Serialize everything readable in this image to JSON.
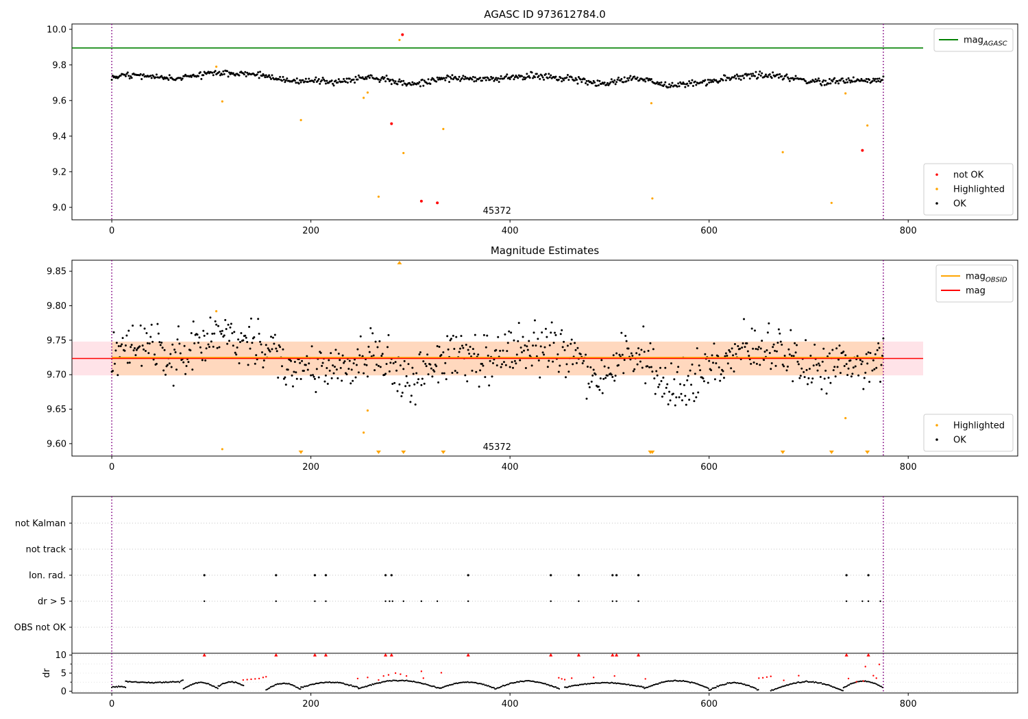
{
  "chart_data": [
    {
      "type": "scatter",
      "title": "AGASC ID 973612784.0",
      "xlim": [
        -40,
        910
      ],
      "ylim": [
        8.93,
        10.03
      ],
      "xticks": [
        "0",
        "200",
        "400",
        "600",
        "800"
      ],
      "xtick_values": [
        0,
        200,
        400,
        600,
        800
      ],
      "yticks": [
        "9.0",
        "9.2",
        "9.4",
        "9.6",
        "9.8",
        "10.0"
      ],
      "ytick_values": [
        9.0,
        9.2,
        9.4,
        9.6,
        9.8,
        10.0
      ],
      "obsid_label": "45372",
      "obsid_label_x": 387,
      "obs_bounds": [
        0,
        775
      ],
      "series": [
        {
          "name": "mag_AGASC",
          "kind": "hline",
          "y": 9.895,
          "x": [
            -40,
            815
          ],
          "color": "#008000"
        },
        {
          "name": "not OK",
          "color": "#ff0000",
          "x": [
            292,
            281,
            311,
            327,
            754
          ],
          "y": [
            9.97,
            9.47,
            9.035,
            9.025,
            9.32
          ]
        },
        {
          "name": "Highlighted",
          "color": "#ffa500",
          "x": [
            105,
            111,
            190,
            253,
            257,
            268,
            289,
            293,
            333,
            542,
            543,
            674,
            723,
            737,
            759
          ],
          "y": [
            9.79,
            9.595,
            9.49,
            9.615,
            9.645,
            9.06,
            9.94,
            9.305,
            9.44,
            9.585,
            9.05,
            9.31,
            9.025,
            9.64,
            9.46
          ]
        },
        {
          "name": "OK",
          "color": "#000000",
          "trend": {
            "x": [
              0,
              30,
              60,
              100,
              140,
              180,
              220,
              260,
              300,
              340,
              380,
              420,
              460,
              490,
              530,
              560,
              600,
              640,
              680,
              700,
              740,
              775
            ],
            "y": [
              9.735,
              9.742,
              9.72,
              9.755,
              9.748,
              9.712,
              9.705,
              9.735,
              9.69,
              9.73,
              9.72,
              9.738,
              9.725,
              9.692,
              9.73,
              9.68,
              9.708,
              9.742,
              9.735,
              9.705,
              9.71,
              9.72
            ]
          }
        }
      ],
      "legends": [
        {
          "position": "top-right",
          "entries": [
            {
              "label": "mag",
              "sub": "AGASC",
              "color": "#008000",
              "marker": "line"
            }
          ]
        },
        {
          "position": "bottom-right",
          "entries": [
            {
              "label": "not OK",
              "color": "#ff0000",
              "marker": "dot"
            },
            {
              "label": "Highlighted",
              "color": "#ffa500",
              "marker": "dot"
            },
            {
              "label": "OK",
              "color": "#000000",
              "marker": "dot"
            }
          ]
        }
      ]
    },
    {
      "type": "scatter",
      "title": "Magnitude Estimates",
      "xlim": [
        -40,
        910
      ],
      "ylim": [
        9.582,
        9.866
      ],
      "xticks": [
        "0",
        "200",
        "400",
        "600",
        "800"
      ],
      "xtick_values": [
        0,
        200,
        400,
        600,
        800
      ],
      "yticks": [
        "9.60",
        "9.65",
        "9.70",
        "9.75",
        "9.80",
        "9.85"
      ],
      "ytick_values": [
        9.6,
        9.65,
        9.7,
        9.75,
        9.8,
        9.85
      ],
      "obsid_label": "45372",
      "obsid_label_x": 387,
      "obs_bounds": [
        0,
        775
      ],
      "bands": [
        {
          "x": [
            -40,
            815
          ],
          "y": [
            9.699,
            9.748
          ],
          "color": "#ffc0cb",
          "opacity": 0.45
        },
        {
          "x": [
            0,
            775
          ],
          "y": [
            9.699,
            9.748
          ],
          "color": "#ffa500",
          "opacity": 0.18
        }
      ],
      "series": [
        {
          "name": "mag_OBSID",
          "kind": "hline",
          "y": 9.7245,
          "x": [
            0,
            775
          ],
          "color": "#ffa500",
          "width": 2.5
        },
        {
          "name": "mag",
          "kind": "hline",
          "y": 9.7235,
          "x": [
            -40,
            815
          ],
          "color": "#ff0000",
          "width": 1.6
        },
        {
          "name": "Highlighted",
          "color": "#ffa500",
          "x": [
            105,
            111,
            253,
            257,
            737
          ],
          "y": [
            9.792,
            9.592,
            9.616,
            9.648,
            9.637
          ],
          "offscale_high": [
            289
          ],
          "offscale_low": [
            190,
            268,
            293,
            333,
            541,
            543,
            674,
            723,
            759
          ]
        },
        {
          "name": "OK",
          "color": "#000000",
          "trend": {
            "x": [
              0,
              30,
              60,
              100,
              140,
              180,
              220,
              260,
              300,
              340,
              380,
              420,
              460,
              490,
              530,
              560,
              600,
              640,
              680,
              700,
              740,
              775
            ],
            "y": [
              9.735,
              9.742,
              9.72,
              9.755,
              9.748,
              9.712,
              9.705,
              9.735,
              9.69,
              9.73,
              9.72,
              9.738,
              9.725,
              9.692,
              9.73,
              9.68,
              9.708,
              9.742,
              9.735,
              9.705,
              9.71,
              9.72
            ]
          }
        }
      ],
      "legends": [
        {
          "position": "top-right",
          "entries": [
            {
              "label": "mag",
              "sub": "OBSID",
              "color": "#ffa500",
              "marker": "line"
            },
            {
              "label": "mag",
              "color": "#ff0000",
              "marker": "line"
            }
          ]
        },
        {
          "position": "bottom-right",
          "entries": [
            {
              "label": "Highlighted",
              "color": "#ffa500",
              "marker": "dot"
            },
            {
              "label": "OK",
              "color": "#000000",
              "marker": "dot"
            }
          ]
        }
      ]
    },
    {
      "type": "scatter",
      "title": "",
      "xlim": [
        -40,
        910
      ],
      "categories": [
        "not Kalman",
        "not track",
        "Ion. rad.",
        "dr > 5",
        "OBS not OK"
      ],
      "obs_bounds": [
        0,
        775
      ],
      "series": [
        {
          "name": "Ion. rad.",
          "category": "Ion. rad.",
          "color": "#000000",
          "x": [
            93,
            165,
            204,
            215,
            275,
            281,
            358,
            441,
            469,
            503,
            507,
            529,
            738,
            760
          ]
        },
        {
          "name": "dr > 5",
          "category": "dr > 5",
          "color": "#000000",
          "x": [
            93,
            165,
            204,
            215,
            275,
            279,
            282,
            293,
            311,
            327,
            358,
            441,
            469,
            503,
            507,
            529,
            738,
            754,
            760,
            772
          ]
        }
      ]
    },
    {
      "type": "scatter",
      "title": "",
      "ylabel": "dr",
      "xlim": [
        -40,
        910
      ],
      "ylim": [
        -0.5,
        10.5
      ],
      "xticks": [
        "0",
        "200",
        "400",
        "600",
        "800"
      ],
      "xtick_values": [
        0,
        200,
        400,
        600,
        800
      ],
      "yticks": [
        "0",
        "5",
        "10"
      ],
      "ytick_values": [
        0,
        5,
        10
      ],
      "obs_bounds": [
        0,
        775
      ],
      "series": [
        {
          "name": "dr >= 10",
          "color": "#ff0000",
          "marker": "triangle",
          "y": 10,
          "x": [
            93,
            165,
            204,
            215,
            275,
            281,
            358,
            441,
            469,
            503,
            507,
            529,
            738,
            760
          ]
        },
        {
          "name": "red",
          "color": "#ff0000",
          "x": [
            132,
            136,
            140,
            144,
            148,
            152,
            155,
            247,
            257,
            268,
            273,
            278,
            285,
            290,
            296,
            311,
            313,
            331,
            449,
            452,
            455,
            462,
            484,
            505,
            536,
            650,
            654,
            658,
            662,
            675,
            690,
            740,
            748,
            755,
            757,
            765,
            768,
            771
          ],
          "y": [
            3.1,
            3.2,
            3.3,
            3.4,
            3.5,
            3.8,
            4.0,
            3.5,
            3.8,
            3.1,
            4.2,
            4.5,
            5.0,
            4.7,
            4.2,
            5.5,
            3.6,
            5.1,
            3.7,
            3.4,
            3.2,
            3.6,
            3.8,
            4.2,
            3.4,
            3.6,
            3.7,
            3.9,
            4.1,
            3.0,
            4.3,
            3.5,
            2.6,
            2.8,
            6.8,
            4.3,
            3.6,
            7.4
          ]
        },
        {
          "name": "OK",
          "color": "#000000",
          "segments": [
            {
              "from": 0,
              "to": 14,
              "lo": 1.0,
              "hi": 1.3
            },
            {
              "from": 14,
              "to": 72,
              "lo": 1.7,
              "hi": 2.7,
              "peak": 3.0
            },
            {
              "from": 72,
              "to": 107,
              "lo": 0.6,
              "hi": 2.4
            },
            {
              "from": 107,
              "to": 133,
              "lo": 1.4,
              "hi": 2.6
            },
            {
              "from": 155,
              "to": 190,
              "lo": 0.4,
              "hi": 2.2
            },
            {
              "from": 190,
              "to": 248,
              "lo": 1.0,
              "hi": 2.5
            },
            {
              "from": 248,
              "to": 330,
              "lo": 0.7,
              "hi": 3.0
            },
            {
              "from": 330,
              "to": 385,
              "lo": 0.8,
              "hi": 2.5
            },
            {
              "from": 385,
              "to": 450,
              "lo": 0.6,
              "hi": 2.8
            },
            {
              "from": 455,
              "to": 535,
              "lo": 1.1,
              "hi": 2.3
            },
            {
              "from": 535,
              "to": 600,
              "lo": 0.8,
              "hi": 2.9
            },
            {
              "from": 600,
              "to": 650,
              "lo": 0.3,
              "hi": 2.3
            },
            {
              "from": 662,
              "to": 735,
              "lo": 0.1,
              "hi": 2.6
            },
            {
              "from": 735,
              "to": 775,
              "lo": 1.0,
              "hi": 2.8
            }
          ]
        }
      ]
    }
  ]
}
